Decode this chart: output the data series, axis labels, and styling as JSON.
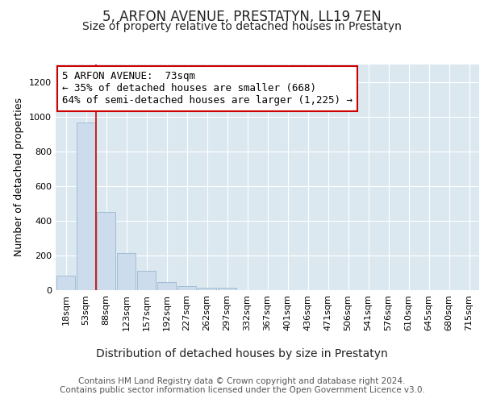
{
  "title": "5, ARFON AVENUE, PRESTATYN, LL19 7EN",
  "subtitle": "Size of property relative to detached houses in Prestatyn",
  "xlabel": "Distribution of detached houses by size in Prestatyn",
  "ylabel": "Number of detached properties",
  "bar_labels": [
    "18sqm",
    "53sqm",
    "88sqm",
    "123sqm",
    "157sqm",
    "192sqm",
    "227sqm",
    "262sqm",
    "297sqm",
    "332sqm",
    "367sqm",
    "401sqm",
    "436sqm",
    "471sqm",
    "506sqm",
    "541sqm",
    "576sqm",
    "610sqm",
    "645sqm",
    "680sqm",
    "715sqm"
  ],
  "bar_values": [
    85,
    968,
    450,
    215,
    110,
    48,
    22,
    12,
    15,
    0,
    0,
    0,
    0,
    0,
    0,
    0,
    0,
    0,
    0,
    0,
    0
  ],
  "bar_color": "#ccdcec",
  "bar_edge_color": "#9ab8d0",
  "vline_x_pos": 1.5,
  "vline_color": "#cc0000",
  "annotation_text": "5 ARFON AVENUE:  73sqm\n← 35% of detached houses are smaller (668)\n64% of semi-detached houses are larger (1,225) →",
  "annotation_box_facecolor": "#ffffff",
  "annotation_box_edgecolor": "#cc0000",
  "ylim": [
    0,
    1300
  ],
  "yticks": [
    0,
    200,
    400,
    600,
    800,
    1000,
    1200
  ],
  "bg_color": "#ffffff",
  "plot_bg_color": "#dce8f0",
  "grid_color": "#ffffff",
  "footer": "Contains HM Land Registry data © Crown copyright and database right 2024.\nContains public sector information licensed under the Open Government Licence v3.0.",
  "title_fontsize": 12,
  "subtitle_fontsize": 10,
  "xlabel_fontsize": 10,
  "ylabel_fontsize": 9,
  "tick_fontsize": 8,
  "annotation_fontsize": 9,
  "footer_fontsize": 7.5
}
